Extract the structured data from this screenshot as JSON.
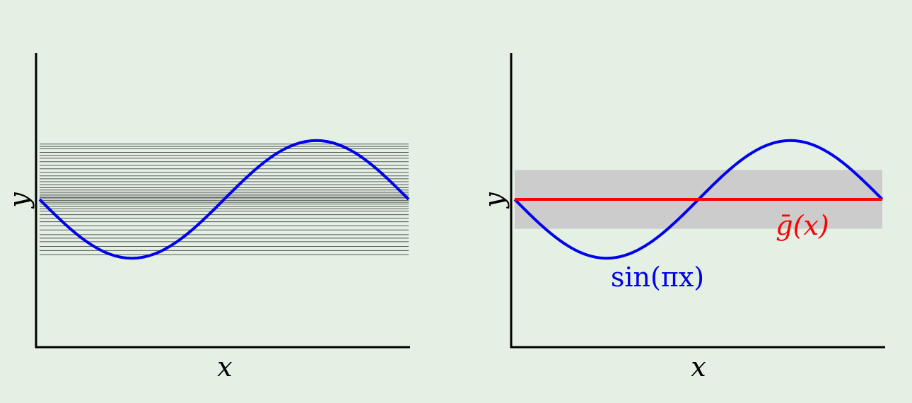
{
  "colors": {
    "background": "#e4f0e4",
    "axis": "#000000",
    "sine_curve": "#0000ee",
    "hypothesis_lines": "#555555",
    "mean_line": "#ff0000",
    "variance_band": "#cccccc"
  },
  "chart_data": [
    {
      "type": "line",
      "xlabel": "x",
      "ylabel": "y",
      "xlim": [
        -1,
        1
      ],
      "ylim": [
        -2.5,
        2.5
      ],
      "grid": false,
      "legend": "none",
      "series": [
        {
          "function": "sin(pi*x)",
          "color": "#0000ee",
          "line_width": "thick"
        }
      ],
      "constant_hypotheses_color": "#555555",
      "constant_hypotheses_y": [
        0.94,
        0.9,
        0.86,
        0.8,
        0.75,
        0.7,
        0.64,
        0.58,
        0.52,
        0.46,
        0.4,
        0.35,
        0.3,
        0.25,
        0.2,
        0.16,
        0.12,
        0.09,
        0.06,
        0.03,
        0.01,
        -0.02,
        -0.05,
        -0.08,
        -0.12,
        -0.16,
        -0.2,
        -0.26,
        -0.32,
        -0.38,
        -0.45,
        -0.52,
        -0.6,
        -0.66,
        -0.72,
        -0.8,
        -0.87,
        -0.94
      ]
    },
    {
      "type": "line",
      "xlabel": "x",
      "ylabel": "y",
      "xlim": [
        -1,
        1
      ],
      "ylim": [
        -2.5,
        2.5
      ],
      "grid": false,
      "legend": "none",
      "series": [
        {
          "label": "sin(πx)",
          "function": "sin(pi*x)",
          "color": "#0000ee"
        },
        {
          "label": "ḡ(x)",
          "constant": 0,
          "color": "#ff0000"
        }
      ],
      "band": {
        "center": 0,
        "half_width": 0.5,
        "color": "#cccccc"
      }
    }
  ],
  "labels": {
    "left_xlabel": "x",
    "left_ylabel": "y",
    "right_xlabel": "x",
    "right_ylabel": "y",
    "sine_label": "sin(πx)",
    "mean_label": "ḡ(x)"
  }
}
